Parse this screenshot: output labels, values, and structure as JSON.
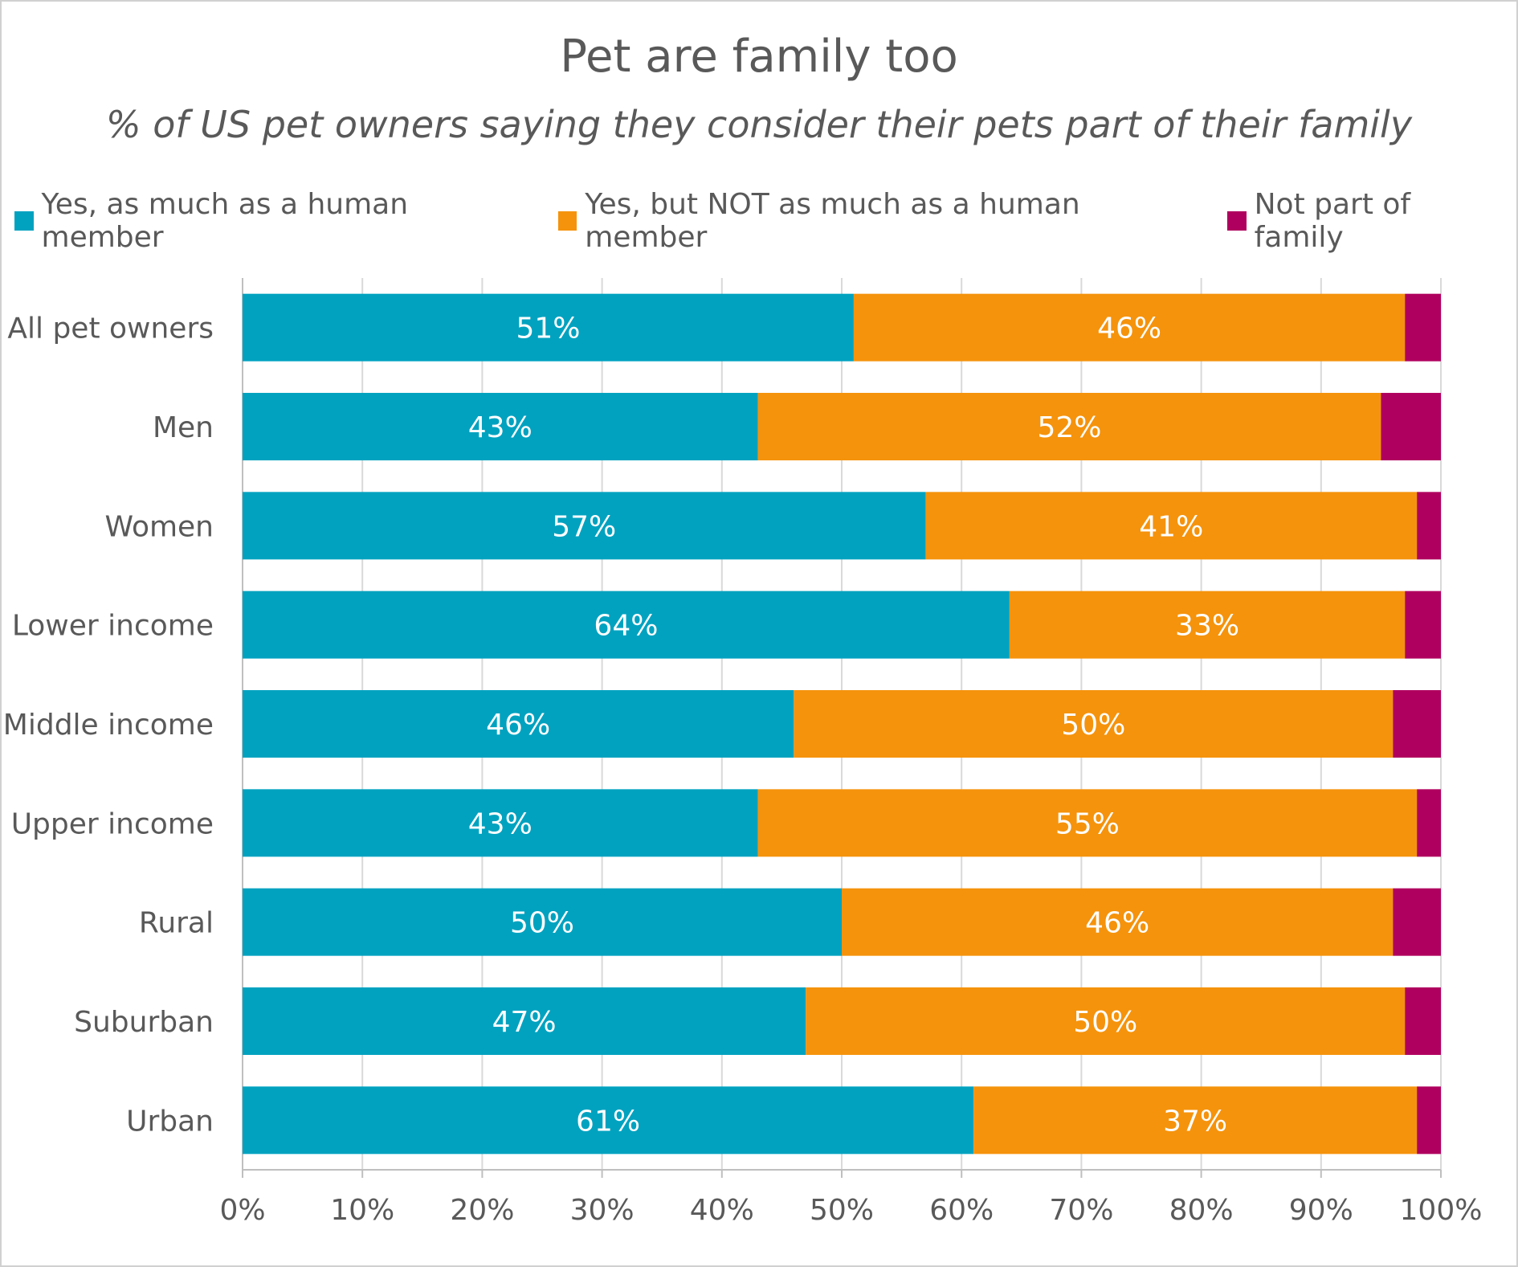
{
  "chart_data": {
    "type": "bar",
    "orientation": "horizontal",
    "stacked": true,
    "title": "Pet are family too",
    "subtitle": "% of US pet owners saying they consider their pets part of their family",
    "categories": [
      "All pet owners",
      "Men",
      "Women",
      "Lower income",
      "Middle income",
      "Upper income",
      "Rural",
      "Suburban",
      "Urban"
    ],
    "series": [
      {
        "name": "Yes, as much as a human member",
        "color": "#00A2C0",
        "values": [
          51,
          43,
          57,
          64,
          46,
          43,
          50,
          47,
          61
        ],
        "labels": [
          "51%",
          "43%",
          "57%",
          "64%",
          "46%",
          "43%",
          "50%",
          "47%",
          "61%"
        ]
      },
      {
        "name": "Yes, but NOT as much as a human member",
        "color": "#F5930C",
        "values": [
          46,
          52,
          41,
          33,
          50,
          55,
          46,
          50,
          37
        ],
        "labels": [
          "46%",
          "52%",
          "41%",
          "33%",
          "50%",
          "55%",
          "46%",
          "50%",
          "37%"
        ]
      },
      {
        "name": "Not part of family",
        "color": "#B0005F",
        "values": [
          3,
          5,
          2,
          3,
          4,
          2,
          4,
          3,
          2
        ],
        "labels": [
          "",
          "",
          "",
          "",
          "",
          "",
          "",
          "",
          ""
        ]
      }
    ],
    "xlim": [
      0,
      100
    ],
    "xticks": [
      "0%",
      "10%",
      "20%",
      "30%",
      "40%",
      "50%",
      "60%",
      "70%",
      "80%",
      "90%",
      "100%"
    ],
    "grid": "vertical",
    "legend_position": "top"
  }
}
